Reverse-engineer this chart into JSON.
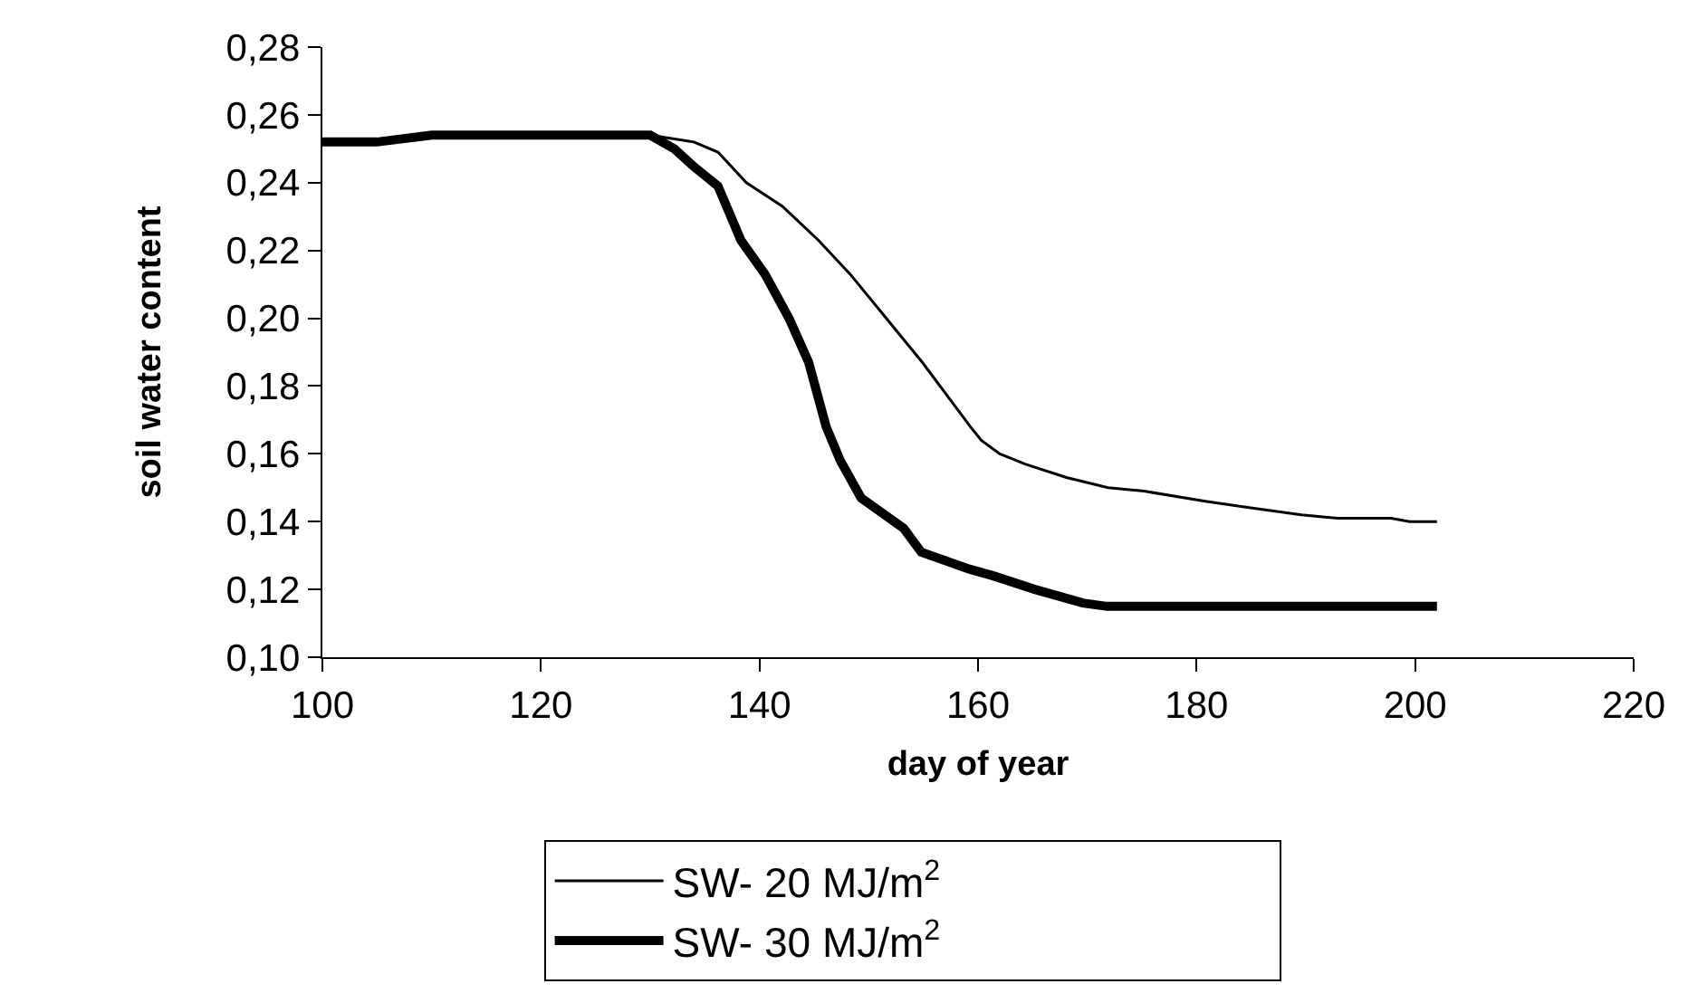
{
  "chart_data": {
    "type": "line",
    "xlabel": "day of year",
    "ylabel": "soil water content",
    "xlim": [
      100,
      220
    ],
    "xticks": [
      100,
      120,
      140,
      160,
      180,
      200,
      220
    ],
    "ylim": [
      0.1,
      0.28
    ],
    "yticks": [
      {
        "value": 0.1,
        "label": "0,10"
      },
      {
        "value": 0.12,
        "label": "0,12"
      },
      {
        "value": 0.14,
        "label": "0,14"
      },
      {
        "value": 0.16,
        "label": "0,16"
      },
      {
        "value": 0.18,
        "label": "0,18"
      },
      {
        "value": 0.2,
        "label": "0,20"
      },
      {
        "value": 0.22,
        "label": "0,22"
      },
      {
        "value": 0.24,
        "label": "0,24"
      },
      {
        "value": 0.26,
        "label": "0,26"
      },
      {
        "value": 0.28,
        "label": "0,28"
      }
    ],
    "legend": "bottom",
    "marker": "none",
    "line_style": "solid",
    "series": [
      {
        "name": "SW- 20 MJ/m$^{2}$",
        "color": "#000000",
        "x": [
          100,
          105,
          110,
          120,
          130,
          134,
          136.2,
          138.8,
          142.1,
          145.4,
          148.3,
          151.6,
          154.9,
          159.3,
          160.3,
          162,
          164.3,
          168.1,
          171.9,
          175.2,
          180.8,
          185.1,
          189.6,
          192.9,
          197.8,
          199.5,
          202
        ],
        "values": [
          0.252,
          0.252,
          0.254,
          0.254,
          0.254,
          0.252,
          0.249,
          0.24,
          0.233,
          0.223,
          0.213,
          0.2,
          0.187,
          0.168,
          0.164,
          0.16,
          0.157,
          0.153,
          0.15,
          0.149,
          0.146,
          0.144,
          0.142,
          0.141,
          0.141,
          0.14,
          0.14
        ]
      },
      {
        "name": "SW- 30 MJ/m$^{2}$",
        "color": "#000000",
        "x": [
          100,
          105,
          110,
          120,
          130,
          132.2,
          133.9,
          136.2,
          138.3,
          140.5,
          142.7,
          144.5,
          146.1,
          147.4,
          149.3,
          153.2,
          154.8,
          159.2,
          161.4,
          165.2,
          169.6,
          171.8,
          180,
          190,
          202
        ],
        "values": [
          0.252,
          0.252,
          0.254,
          0.254,
          0.254,
          0.25,
          0.245,
          0.239,
          0.223,
          0.213,
          0.2,
          0.187,
          0.168,
          0.158,
          0.147,
          0.138,
          0.131,
          0.126,
          0.124,
          0.12,
          0.116,
          0.115,
          0.115,
          0.115,
          0.115
        ]
      }
    ]
  }
}
